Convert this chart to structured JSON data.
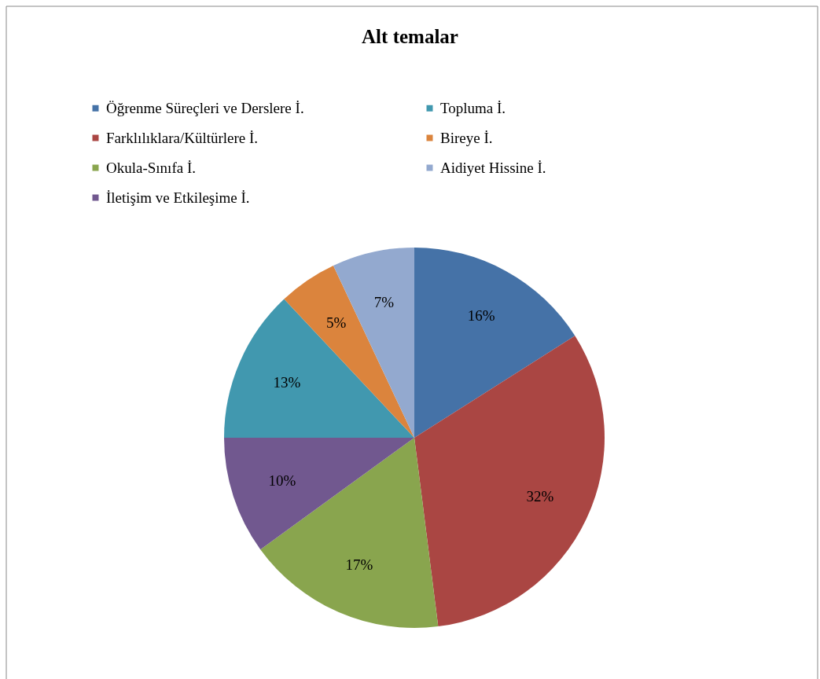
{
  "chart_data": {
    "type": "pie",
    "title": "Alt temalar",
    "categories": [
      "Öğrenme Süreçleri ve Derslere İ.",
      "Farklılıklara/Kültürlere İ.",
      "Okula-Sınıfa İ.",
      "İletişim ve Etkileşime İ.",
      "Topluma İ.",
      "Bireye İ.",
      "Aidiyet Hissine İ."
    ],
    "values": [
      16,
      32,
      17,
      10,
      13,
      5,
      7
    ],
    "value_labels": [
      "16%",
      "32%",
      "17%",
      "10%",
      "13%",
      "5%",
      "7%"
    ],
    "colors": [
      "#4572a7",
      "#aa4643",
      "#89a54e",
      "#71588f",
      "#4198af",
      "#db843d",
      "#93a9cf"
    ],
    "legend": "top"
  }
}
